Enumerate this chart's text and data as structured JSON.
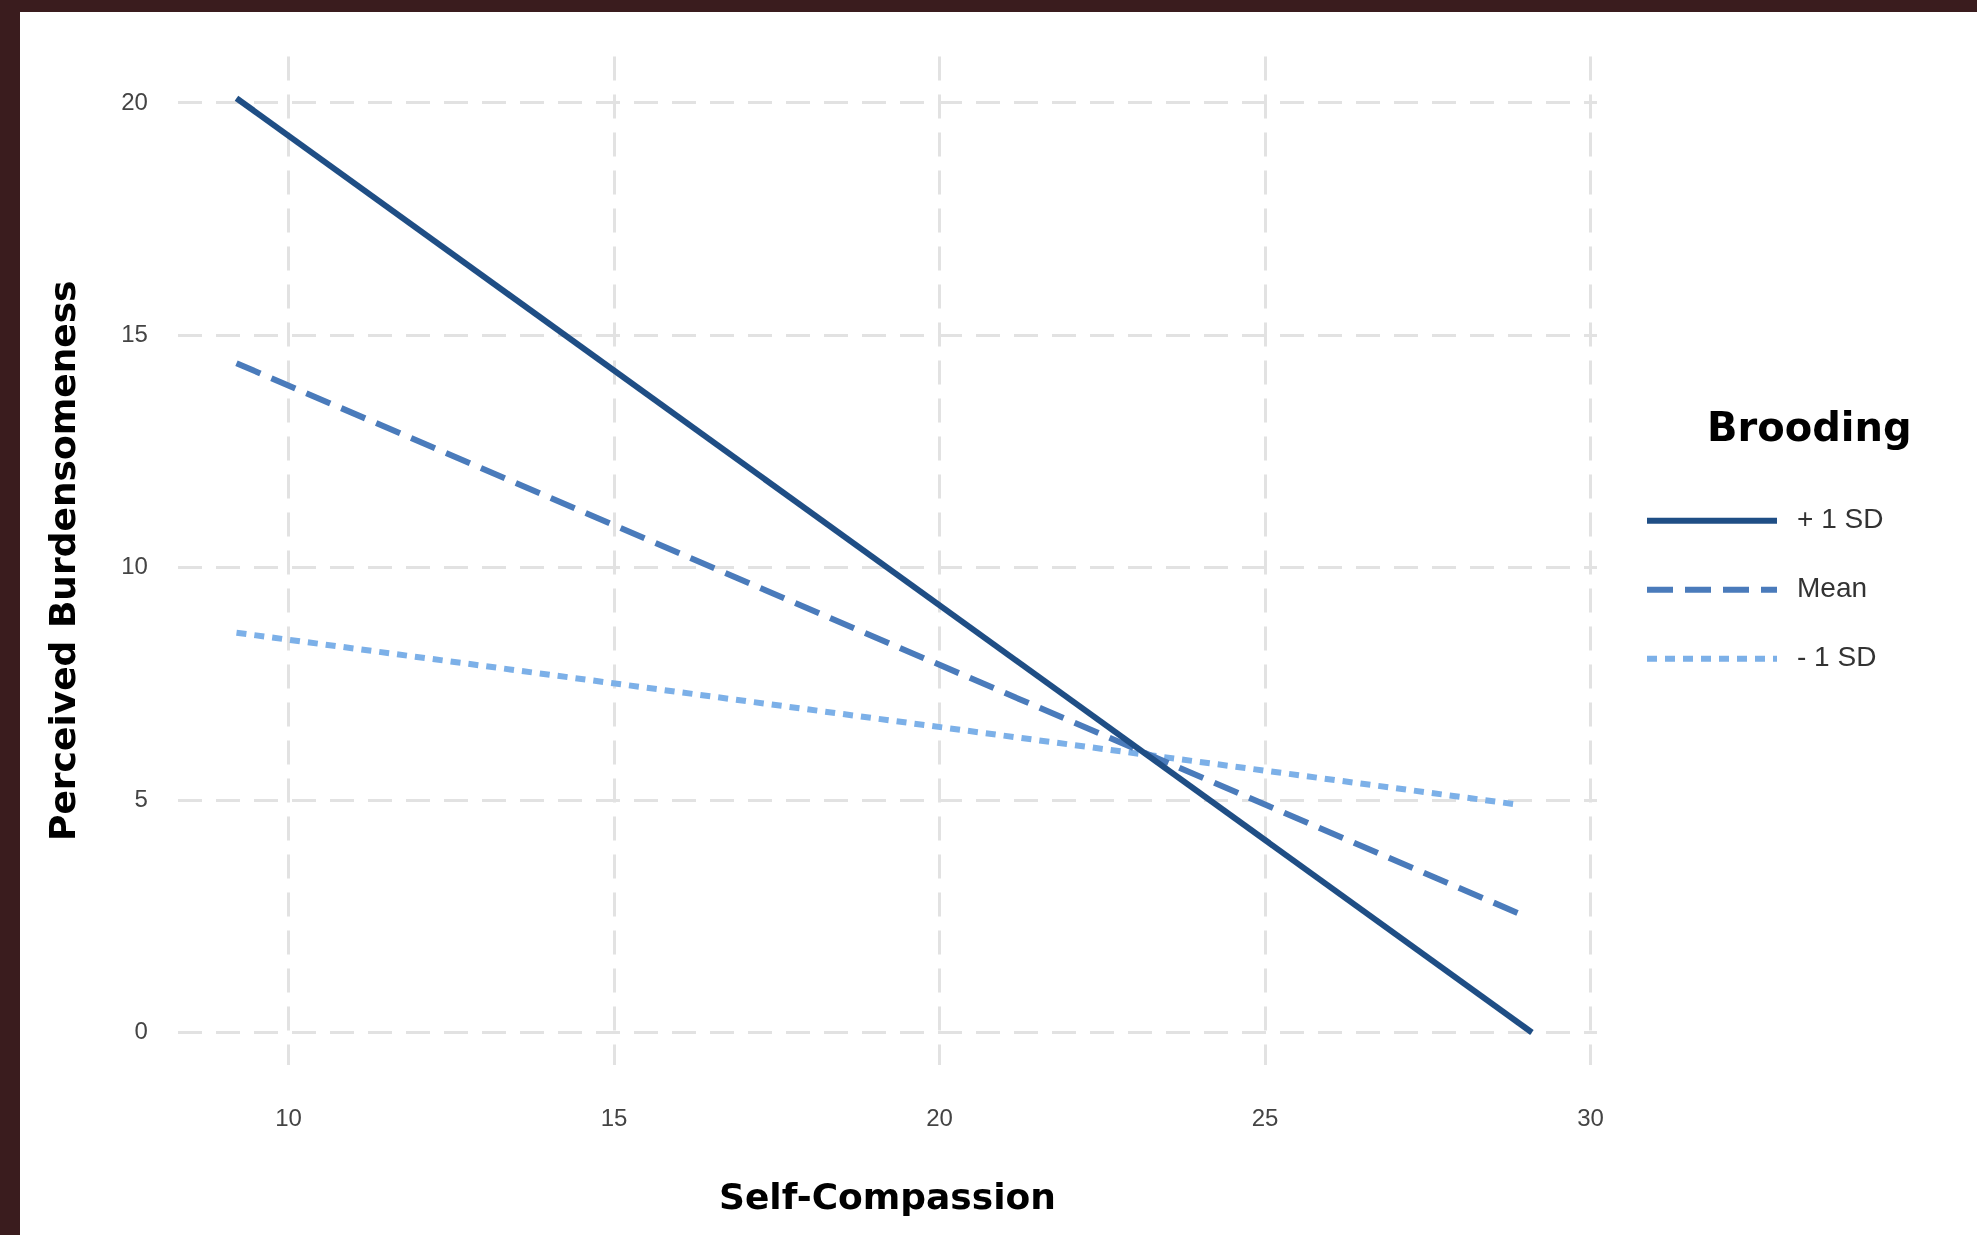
{
  "chart_data": {
    "type": "line",
    "xlabel": "Self-Compassion",
    "ylabel": "Perceived Burdensomeness",
    "legend_title": "Brooding",
    "xlim": [
      8.3,
      30.1
    ],
    "xticks": [
      10,
      15,
      20,
      25,
      30
    ],
    "ylim": [
      -0.7,
      21
    ],
    "yticks": [
      0,
      5,
      10,
      15,
      20
    ],
    "grid": true,
    "legend": "right",
    "marker": "none",
    "series": [
      {
        "name": "+ 1 SD",
        "color": "#1f4e85",
        "line_style": "solid",
        "x": [
          9.2,
          29.1
        ],
        "values": [
          20.1,
          0
        ]
      },
      {
        "name": "Mean",
        "color": "#4a7bbb",
        "line_style": "dashed",
        "x": [
          9.2,
          29.0
        ],
        "values": [
          14.4,
          2.5
        ]
      },
      {
        "name": "- 1 SD",
        "color": "#7cb0e8",
        "line_style": "dotted",
        "x": [
          9.2,
          28.9
        ],
        "values": [
          8.6,
          4.9
        ]
      }
    ]
  }
}
